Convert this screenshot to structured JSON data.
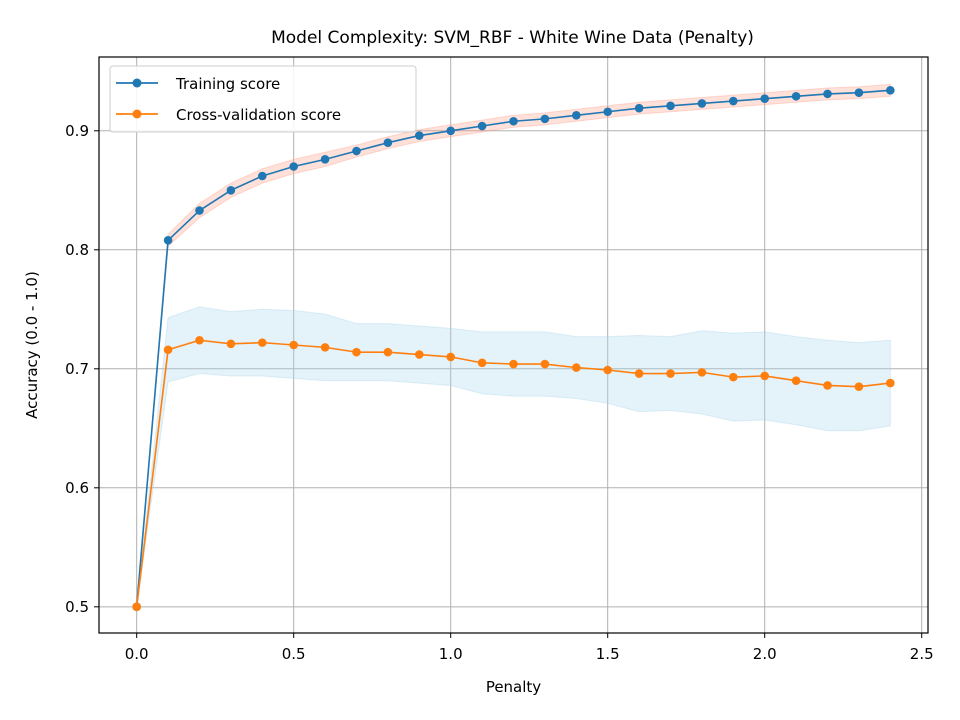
{
  "chart_data": {
    "type": "line",
    "title": "Model Complexity: SVM_RBF - White Wine Data (Penalty)",
    "xlabel": "Penalty",
    "ylabel": "Accuracy (0.0 - 1.0)",
    "xlim": [
      -0.12,
      2.52
    ],
    "ylim": [
      0.478,
      0.962
    ],
    "xticks": [
      0.0,
      0.5,
      1.0,
      1.5,
      2.0,
      2.5
    ],
    "xtick_labels": [
      "0.0",
      "0.5",
      "1.0",
      "1.5",
      "2.0",
      "2.5"
    ],
    "yticks": [
      0.5,
      0.6,
      0.7,
      0.8,
      0.9
    ],
    "ytick_labels": [
      "0.5",
      "0.6",
      "0.7",
      "0.8",
      "0.9"
    ],
    "grid": true,
    "legend_position": "top-left",
    "x": [
      0.0,
      0.1,
      0.2,
      0.3,
      0.4,
      0.5,
      0.6,
      0.7,
      0.8,
      0.9,
      1.0,
      1.1,
      1.2,
      1.3,
      1.4,
      1.5,
      1.6,
      1.7,
      1.8,
      1.9,
      2.0,
      2.1,
      2.2,
      2.3,
      2.4
    ],
    "series": [
      {
        "name": "Training score",
        "color": "#1f77b4",
        "band_color": "#ff9a85",
        "values": [
          0.5,
          0.808,
          0.833,
          0.85,
          0.862,
          0.87,
          0.876,
          0.883,
          0.89,
          0.896,
          0.9,
          0.904,
          0.908,
          0.91,
          0.913,
          0.916,
          0.919,
          0.921,
          0.923,
          0.925,
          0.927,
          0.929,
          0.931,
          0.932,
          0.934
        ],
        "band_upper": [
          0.5,
          0.813,
          0.839,
          0.856,
          0.868,
          0.876,
          0.882,
          0.888,
          0.895,
          0.901,
          0.905,
          0.909,
          0.913,
          0.915,
          0.918,
          0.921,
          0.924,
          0.926,
          0.928,
          0.93,
          0.932,
          0.934,
          0.936,
          0.937,
          0.939
        ],
        "band_lower": [
          0.5,
          0.803,
          0.827,
          0.844,
          0.856,
          0.864,
          0.87,
          0.878,
          0.885,
          0.891,
          0.895,
          0.899,
          0.903,
          0.905,
          0.908,
          0.911,
          0.914,
          0.916,
          0.918,
          0.92,
          0.922,
          0.924,
          0.926,
          0.927,
          0.929
        ]
      },
      {
        "name": "Cross-validation score",
        "color": "#ff7f0e",
        "band_color": "#a6d4ec",
        "values": [
          0.5,
          0.716,
          0.724,
          0.721,
          0.722,
          0.72,
          0.718,
          0.714,
          0.714,
          0.712,
          0.71,
          0.705,
          0.704,
          0.704,
          0.701,
          0.699,
          0.696,
          0.696,
          0.697,
          0.693,
          0.694,
          0.69,
          0.686,
          0.685,
          0.688
        ],
        "band_upper": [
          0.5,
          0.743,
          0.752,
          0.748,
          0.75,
          0.749,
          0.746,
          0.738,
          0.738,
          0.736,
          0.734,
          0.731,
          0.731,
          0.731,
          0.727,
          0.727,
          0.728,
          0.727,
          0.732,
          0.73,
          0.731,
          0.727,
          0.724,
          0.722,
          0.724
        ],
        "band_lower": [
          0.5,
          0.689,
          0.696,
          0.694,
          0.694,
          0.692,
          0.69,
          0.69,
          0.69,
          0.688,
          0.686,
          0.679,
          0.677,
          0.677,
          0.675,
          0.671,
          0.664,
          0.665,
          0.662,
          0.656,
          0.657,
          0.653,
          0.648,
          0.648,
          0.652
        ]
      }
    ]
  }
}
